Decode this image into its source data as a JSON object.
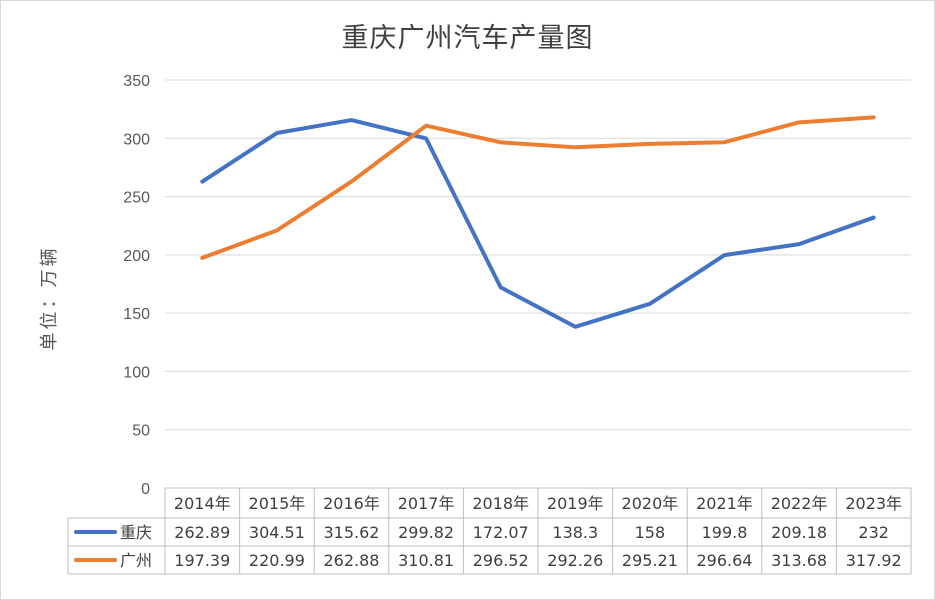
{
  "chart_data": {
    "type": "line",
    "title": "重庆广州汽车产量图",
    "ylabel": "单位：万辆",
    "xlabel": "",
    "categories": [
      "2014年",
      "2015年",
      "2016年",
      "2017年",
      "2018年",
      "2019年",
      "2020年",
      "2021年",
      "2022年",
      "2023年"
    ],
    "series": [
      {
        "name": "重庆",
        "color": "#4472c4",
        "values": [
          262.89,
          304.51,
          315.62,
          299.82,
          172.07,
          138.3,
          158,
          199.8,
          209.18,
          232
        ],
        "labels": [
          "262.89",
          "304.51",
          "315.62",
          "299.82",
          "172.07",
          "138.3",
          "158",
          "199.8",
          "209.18",
          "232"
        ]
      },
      {
        "name": "广州",
        "color": "#ed7d31",
        "values": [
          197.39,
          220.99,
          262.88,
          310.81,
          296.52,
          292.26,
          295.21,
          296.64,
          313.68,
          317.92
        ],
        "labels": [
          "197.39",
          "220.99",
          "262.88",
          "310.81",
          "296.52",
          "292.26",
          "295.21",
          "296.64",
          "313.68",
          "317.92"
        ]
      }
    ],
    "ylim": [
      0,
      350
    ],
    "yticks": [
      "0",
      "50",
      "100",
      "150",
      "200",
      "250",
      "300",
      "350"
    ],
    "grid": true,
    "legend": "data-table"
  }
}
